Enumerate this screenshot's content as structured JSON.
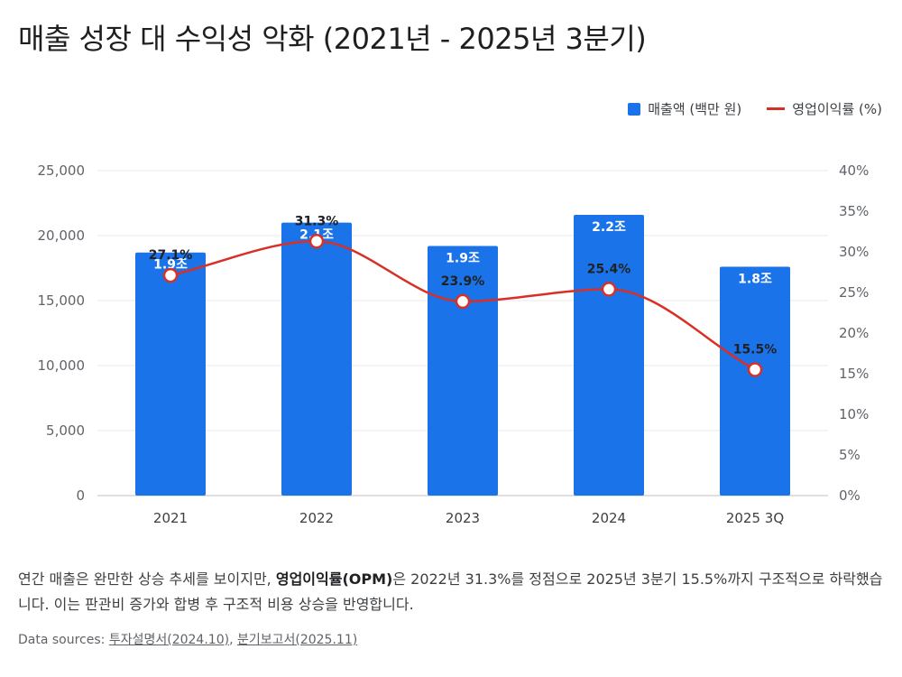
{
  "chart_data": {
    "type": "bar",
    "title": "매출 성장 대 수익성 악화 (2021년 - 2025년 3분기)",
    "categories": [
      "2021",
      "2022",
      "2023",
      "2024",
      "2025 3Q"
    ],
    "series": [
      {
        "name": "매출액 (백만 원)",
        "type": "bar",
        "axis": "left",
        "color": "#1a73e8",
        "values": [
          18700,
          21000,
          19200,
          21600,
          17600
        ],
        "labels": [
          "1.9조",
          "2.1조",
          "1.9조",
          "2.2조",
          "1.8조"
        ]
      },
      {
        "name": "영업이익률 (%)",
        "type": "line",
        "axis": "right",
        "color": "#d93025",
        "values": [
          27.1,
          31.3,
          23.9,
          25.4,
          15.5
        ],
        "labels": [
          "27.1%",
          "31.3%",
          "23.9%",
          "25.4%",
          "15.5%"
        ]
      }
    ],
    "y_left": {
      "range": [
        0,
        25000
      ],
      "ticks": [
        0,
        5000,
        10000,
        15000,
        20000,
        25000
      ],
      "tick_labels": [
        "0",
        "5,000",
        "10,000",
        "15,000",
        "20,000",
        "25,000"
      ]
    },
    "y_right": {
      "range": [
        0,
        40
      ],
      "ticks": [
        0,
        5,
        10,
        15,
        20,
        25,
        30,
        35,
        40
      ],
      "tick_labels": [
        "0%",
        "5%",
        "10%",
        "15%",
        "20%",
        "25%",
        "30%",
        "35%",
        "40%"
      ]
    },
    "grid": true,
    "legend_position": "top-right"
  },
  "description": {
    "before": "연간 매출은 완만한 상승 추세를 보이지만, ",
    "bold": "영업이익률(OPM)",
    "after": "은 2022년 31.3%를 정점으로 2025년 3분기 15.5%까지 구조적으로 하락했습니다. 이는 판관비 증가와 합병 후 구조적 비용 상승을 반영합니다."
  },
  "sources": {
    "label": "Data sources:",
    "links": [
      "투자설명서(2024.10)",
      "분기보고서(2025.11)"
    ],
    "separator": ","
  }
}
